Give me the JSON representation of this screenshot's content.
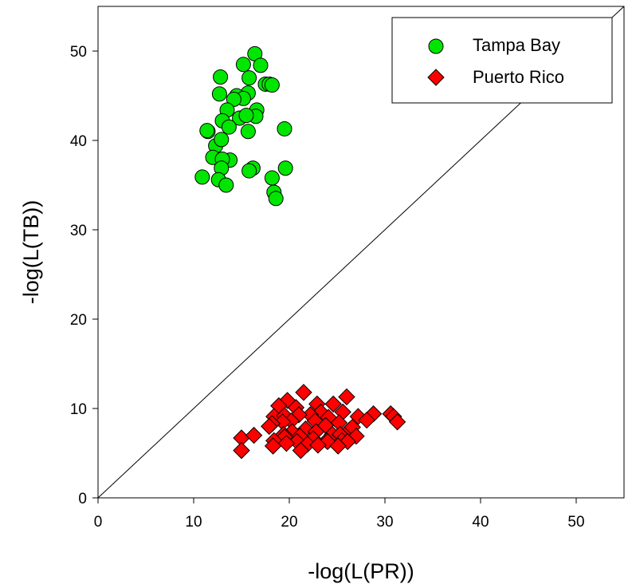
{
  "chart_data": {
    "type": "scatter",
    "xlabel": "-log(L(PR))",
    "ylabel": "-log(L(TB))",
    "xlim": [
      0,
      55
    ],
    "ylim": [
      0,
      55
    ],
    "xticks": [
      0,
      10,
      20,
      30,
      40,
      50
    ],
    "yticks": [
      0,
      10,
      20,
      30,
      40,
      50
    ],
    "grid": false,
    "legend": "top-right",
    "reference_line": "y = x",
    "series": [
      {
        "name": "Tampa Bay",
        "marker": "circle",
        "color": "#00e600",
        "x": [
          16.4,
          15.2,
          17.0,
          15.8,
          17.5,
          17.9,
          18.2,
          12.8,
          15.7,
          14.5,
          15.2,
          12.7,
          14.2,
          13.5,
          16.6,
          16.5,
          13.0,
          14.8,
          15.5,
          13.7,
          11.5,
          11.4,
          19.5,
          15.7,
          12.3,
          12.0,
          12.9,
          13.8,
          13.0,
          12.9,
          19.6,
          16.2,
          15.8,
          10.9,
          18.2,
          12.6,
          13.4,
          18.4,
          18.6
        ],
        "y": [
          49.7,
          48.5,
          48.4,
          47.0,
          46.3,
          46.3,
          46.2,
          47.1,
          45.3,
          45.0,
          44.7,
          45.2,
          44.6,
          43.4,
          43.4,
          42.7,
          42.2,
          42.5,
          42.8,
          41.5,
          41.0,
          41.1,
          41.3,
          41.0,
          39.4,
          38.1,
          40.1,
          37.8,
          37.9,
          36.9,
          36.9,
          36.9,
          36.6,
          35.9,
          35.8,
          35.6,
          35.0,
          34.2,
          33.5
        ]
      },
      {
        "name": "Puerto Rico",
        "marker": "diamond",
        "color": "#ff0000",
        "x": [
          21.5,
          26.0,
          19.8,
          18.9,
          22.9,
          24.6,
          20.7,
          18.4,
          23.3,
          25.6,
          28.8,
          22.2,
          19.5,
          21.0,
          24.1,
          27.2,
          30.6,
          30.9,
          31.3,
          22.7,
          20.2,
          19.3,
          25.2,
          18.2,
          28.1,
          23.8,
          17.9,
          21.7,
          20.3,
          26.3,
          26.6,
          22.8,
          24.5,
          19.4,
          25.3,
          15.0,
          16.3,
          21.1,
          27.0,
          19.5,
          23.9,
          18.4,
          25.5,
          22.5,
          20.8,
          24.0,
          26.1,
          19.7,
          21.9,
          23.0,
          15.0,
          18.3,
          21.2,
          25.1
        ],
        "y": [
          11.8,
          11.3,
          10.9,
          10.3,
          10.5,
          10.5,
          10.1,
          9.1,
          9.6,
          9.6,
          9.4,
          9.3,
          9.2,
          9.3,
          9.0,
          9.1,
          9.4,
          9.1,
          8.5,
          8.6,
          8.6,
          8.5,
          8.4,
          8.3,
          8.7,
          8.1,
          8.0,
          7.7,
          7.4,
          7.6,
          7.9,
          7.4,
          7.1,
          7.1,
          7.1,
          6.7,
          7.0,
          6.9,
          6.9,
          6.8,
          6.4,
          6.4,
          6.4,
          6.6,
          6.3,
          6.3,
          6.3,
          6.1,
          6.0,
          5.9,
          5.3,
          5.8,
          5.3,
          5.8
        ]
      }
    ]
  }
}
